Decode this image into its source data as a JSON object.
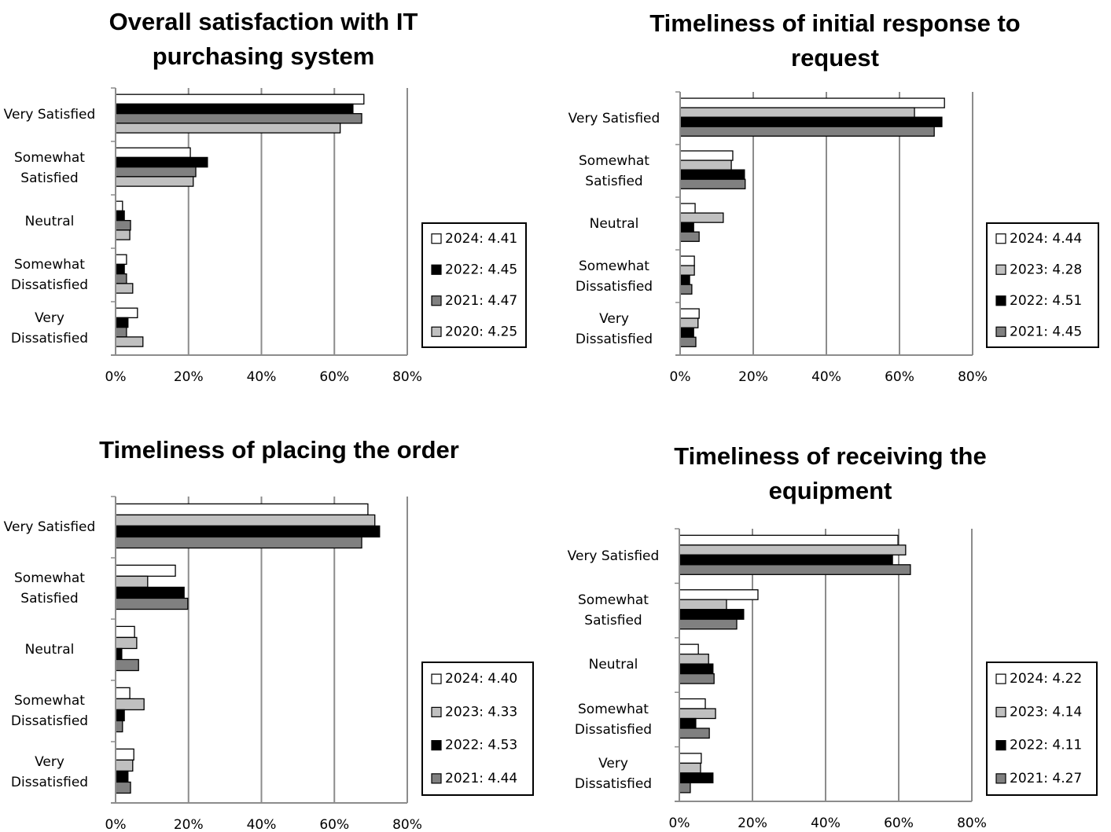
{
  "chart_data": [
    {
      "type": "bar",
      "orientation": "horizontal",
      "title": "Overall satisfaction with IT purchasing system",
      "categories": [
        "Very Satisfied",
        "Somewhat Satisfied",
        "Neutral",
        "Somewhat Dissatisfied",
        "Very Dissatisfied"
      ],
      "series": [
        {
          "name": "2024: 4.41",
          "color": "#ffffff",
          "values": [
            68.1,
            20.5,
            1.9,
            3,
            6
          ]
        },
        {
          "name": "2022: 4.45",
          "color": "#000000",
          "values": [
            65.1,
            25.2,
            2.4,
            2.4,
            3.4
          ]
        },
        {
          "name": "2021: 4.47",
          "color": "#808080",
          "values": [
            67.5,
            22,
            4.1,
            3,
            3
          ]
        },
        {
          "name": "2020: 4.25",
          "color": "#c0c0c0",
          "values": [
            61.6,
            21.3,
            3.9,
            4.7,
            7.5
          ]
        }
      ],
      "xlim": [
        0,
        80
      ],
      "xticks": [
        {
          "value": 0,
          "label": "0%"
        },
        {
          "value": 20,
          "label": "20%"
        },
        {
          "value": 40,
          "label": "40%"
        },
        {
          "value": 60,
          "label": "60%"
        },
        {
          "value": 80,
          "label": "80%"
        }
      ],
      "grid": true,
      "legend": "right"
    },
    {
      "type": "bar",
      "orientation": "horizontal",
      "title": "Timeliness of initial response to request",
      "categories": [
        "Very Satisfied",
        "Somewhat Satisfied",
        "Neutral",
        "Somewhat Dissatisfied",
        "Very Dissatisfied"
      ],
      "series": [
        {
          "name": "2024: 4.44",
          "color": "#ffffff",
          "values": [
            72.3,
            14.4,
            4.1,
            3.9,
            5.2
          ]
        },
        {
          "name": "2023: 4.28",
          "color": "#c0c0c0",
          "values": [
            64.1,
            14,
            11.8,
            3.9,
            4.9
          ]
        },
        {
          "name": "2022: 4.51",
          "color": "#000000",
          "values": [
            71.6,
            17.6,
            3.7,
            2.6,
            3.7
          ]
        },
        {
          "name": "2021: 4.45",
          "color": "#808080",
          "values": [
            69.5,
            17.8,
            5.2,
            3.2,
            4.3
          ]
        }
      ],
      "xlim": [
        0,
        80
      ],
      "xticks": [
        {
          "value": 0,
          "label": "0%"
        },
        {
          "value": 20,
          "label": "20%"
        },
        {
          "value": 40,
          "label": "40%"
        },
        {
          "value": 60,
          "label": "60%"
        },
        {
          "value": 80,
          "label": "80%"
        }
      ],
      "grid": true,
      "legend": "right"
    },
    {
      "type": "bar",
      "orientation": "horizontal",
      "title": "Timeliness of placing the order",
      "categories": [
        "Very Satisfied",
        "Somewhat Satisfied",
        "Neutral",
        "Somewhat Dissatisfied",
        "Very Dissatisfied"
      ],
      "series": [
        {
          "name": "2024: 4.40",
          "color": "#ffffff",
          "values": [
            69.2,
            16.4,
            5.2,
            3.9,
            5
          ]
        },
        {
          "name": "2023: 4.33",
          "color": "#c0c0c0",
          "values": [
            71.1,
            8.8,
            5.8,
            7.8,
            4.7
          ]
        },
        {
          "name": "2022: 4.53",
          "color": "#000000",
          "values": [
            72.4,
            18.8,
            1.7,
            2.4,
            3.4
          ]
        },
        {
          "name": "2021: 4.44",
          "color": "#808080",
          "values": [
            67.5,
            19.8,
            6.3,
            1.9,
            4.1
          ]
        }
      ],
      "xlim": [
        0,
        80
      ],
      "xticks": [
        {
          "value": 0,
          "label": "0%"
        },
        {
          "value": 20,
          "label": "20%"
        },
        {
          "value": 40,
          "label": "40%"
        },
        {
          "value": 60,
          "label": "60%"
        },
        {
          "value": 80,
          "label": "80%"
        }
      ],
      "grid": true,
      "legend": "right"
    },
    {
      "type": "bar",
      "orientation": "horizontal",
      "title": "Timeliness of receiving the equipment",
      "categories": [
        "Very Satisfied",
        "Somewhat Satisfied",
        "Neutral",
        "Somewhat Dissatisfied",
        "Very Dissatisfied"
      ],
      "series": [
        {
          "name": "2024: 4.22",
          "color": "#ffffff",
          "values": [
            59.8,
            21.5,
            5.2,
            7.1,
            6
          ]
        },
        {
          "name": "2023: 4.14",
          "color": "#c0c0c0",
          "values": [
            61.9,
            12.9,
            8,
            9.9,
            5.8
          ]
        },
        {
          "name": "2022: 4.11",
          "color": "#000000",
          "values": [
            58.3,
            17.6,
            9.2,
            4.5,
            9.2
          ]
        },
        {
          "name": "2021: 4.27",
          "color": "#808080",
          "values": [
            63.2,
            15.7,
            9.5,
            8.2,
            3
          ]
        }
      ],
      "xlim": [
        0,
        80
      ],
      "xticks": [
        {
          "value": 0,
          "label": "0%"
        },
        {
          "value": 20,
          "label": "20%"
        },
        {
          "value": 40,
          "label": "40%"
        },
        {
          "value": 60,
          "label": "60%"
        },
        {
          "value": 80,
          "label": "80%"
        }
      ],
      "grid": true,
      "legend": "right"
    }
  ]
}
